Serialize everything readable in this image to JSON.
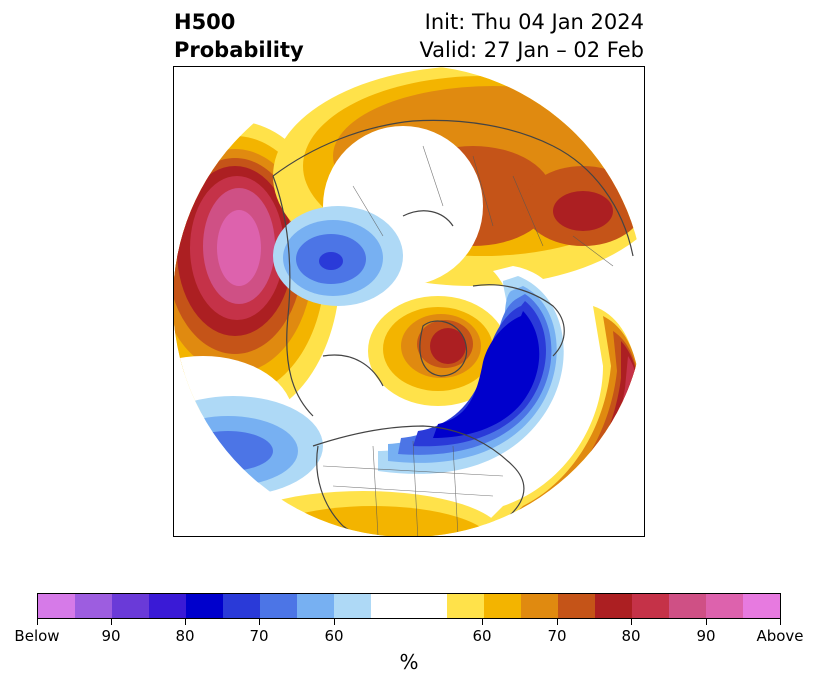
{
  "title": {
    "left_line1": "H500",
    "left_line2": "Probability",
    "right_line1": "Init: Thu 04 Jan 2024",
    "right_line2": "Valid: 27 Jan – 02 Feb"
  },
  "map": {
    "projection": "north polar stereographic",
    "regions": "Northern Hemisphere, North America at bottom"
  },
  "colorbar": {
    "colors": [
      "#d67ae8",
      "#9d5de0",
      "#6a3ad8",
      "#3a1ad6",
      "#0000cc",
      "#2a3ad8",
      "#4c75e6",
      "#77b0f2",
      "#aed9f6",
      "#ffffff",
      "#ffe24a",
      "#f3b400",
      "#e08a10",
      "#c55418",
      "#ac1f22",
      "#c53248",
      "#cf5085",
      "#dd62ad",
      "#e77ae0"
    ],
    "tick_labels": [
      "Below",
      "90",
      "80",
      "70",
      "60",
      "60",
      "70",
      "80",
      "90",
      "Above"
    ],
    "unit": "%"
  }
}
